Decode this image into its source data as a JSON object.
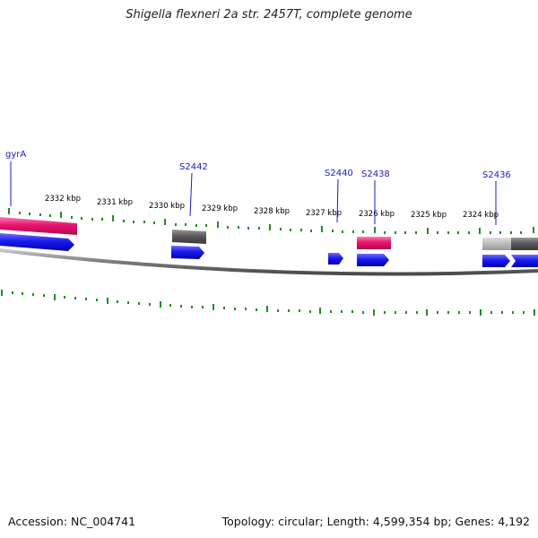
{
  "title": "Shigella flexneri 2a str. 2457T, complete genome",
  "footer": {
    "accession": "Accession: NC_004741",
    "summary": "Topology: circular; Length: 4,599,354 bp; Genes: 4,192"
  },
  "colors": {
    "forward_cds": "#1a1aee",
    "trna_pink": "#e8156e",
    "pseudo_gray": "#5a5a5a",
    "light_gray": "#bdbdbd",
    "tick_green": "#1f8f1f",
    "label_blue": "#1a1acc",
    "backbone": "#8a8a8a"
  },
  "scale_labels": [
    "2332 kbp",
    "2331 kbp",
    "2330 kbp",
    "2329 kbp",
    "2328 kbp",
    "2327 kbp",
    "2326 kbp",
    "2325 kbp",
    "2324 kbp"
  ],
  "gene_labels": [
    "gyrA",
    "S2442",
    "S2440",
    "S2438",
    "S2436"
  ],
  "features": [
    {
      "name": "gyrA",
      "kind": "trna_pink"
    },
    {
      "name": "gyrA",
      "kind": "forward_cds"
    },
    {
      "name": "S2442",
      "kind": "pseudo_gray"
    },
    {
      "name": "S2442",
      "kind": "forward_cds"
    },
    {
      "name": "S2440",
      "kind": "forward_cds"
    },
    {
      "name": "S2438",
      "kind": "trna_pink"
    },
    {
      "name": "S2438",
      "kind": "forward_cds"
    },
    {
      "name": "S2436",
      "kind": "light_gray"
    },
    {
      "name": "S2436",
      "kind": "forward_cds"
    },
    {
      "name": "",
      "kind": "pseudo_gray"
    },
    {
      "name": "",
      "kind": "forward_cds"
    }
  ]
}
